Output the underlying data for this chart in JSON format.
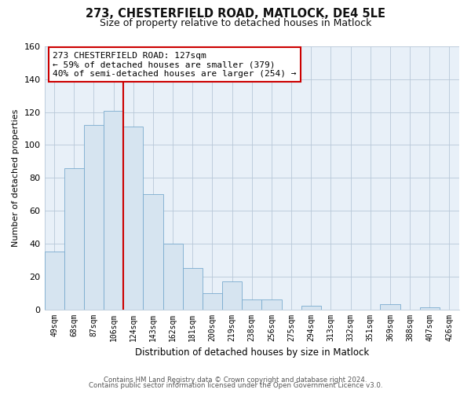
{
  "title": "273, CHESTERFIELD ROAD, MATLOCK, DE4 5LE",
  "subtitle": "Size of property relative to detached houses in Matlock",
  "xlabel": "Distribution of detached houses by size in Matlock",
  "ylabel": "Number of detached properties",
  "bar_labels": [
    "49sqm",
    "68sqm",
    "87sqm",
    "106sqm",
    "124sqm",
    "143sqm",
    "162sqm",
    "181sqm",
    "200sqm",
    "219sqm",
    "238sqm",
    "256sqm",
    "275sqm",
    "294sqm",
    "313sqm",
    "332sqm",
    "351sqm",
    "369sqm",
    "388sqm",
    "407sqm",
    "426sqm"
  ],
  "bar_values": [
    35,
    86,
    112,
    121,
    111,
    70,
    40,
    25,
    10,
    17,
    6,
    6,
    0,
    2,
    0,
    0,
    0,
    3,
    0,
    1,
    0
  ],
  "bar_color": "#d6e4f0",
  "bar_edge_color": "#7aabce",
  "highlight_line_color": "#cc0000",
  "annotation_text": "273 CHESTERFIELD ROAD: 127sqm\n← 59% of detached houses are smaller (379)\n40% of semi-detached houses are larger (254) →",
  "annotation_box_color": "#ffffff",
  "annotation_box_edge_color": "#cc0000",
  "ylim": [
    0,
    160
  ],
  "yticks": [
    0,
    20,
    40,
    60,
    80,
    100,
    120,
    140,
    160
  ],
  "footer_line1": "Contains HM Land Registry data © Crown copyright and database right 2024.",
  "footer_line2": "Contains public sector information licensed under the Open Government Licence v3.0.",
  "bg_color": "#ffffff",
  "plot_bg_color": "#e8f0f8",
  "grid_color": "#b8c8d8"
}
